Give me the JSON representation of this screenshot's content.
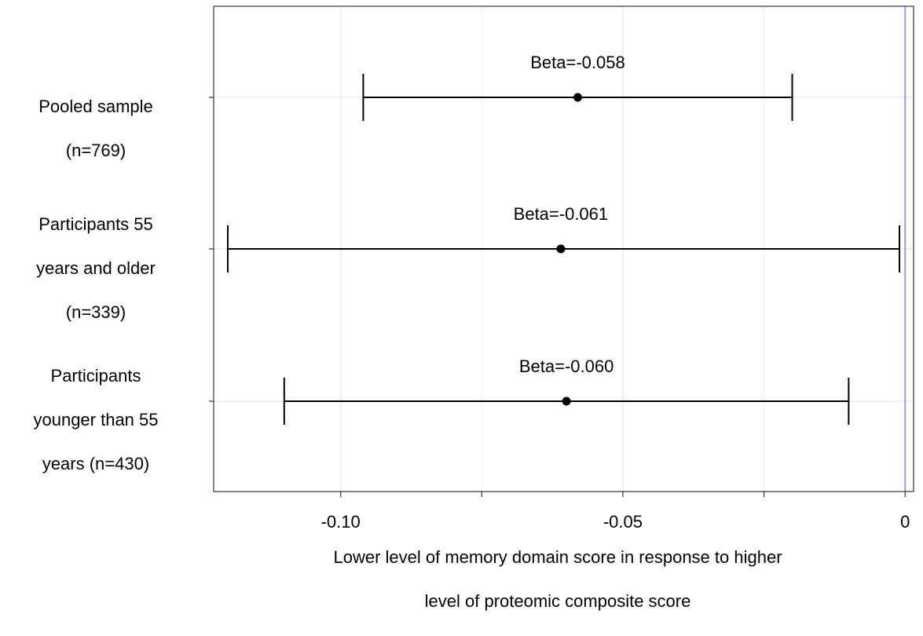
{
  "chart_data": {
    "type": "forest",
    "categories": [
      "Pooled sample (n=769)",
      "Participants 55 years and older (n=339)",
      "Participants younger than 55 years (n=430)"
    ],
    "category_lines": [
      [
        "Pooled sample",
        "(n=769)"
      ],
      [
        "Participants 55",
        "years and older",
        "(n=339)"
      ],
      [
        "Participants",
        "younger than 55",
        "years (n=430)"
      ]
    ],
    "estimates": [
      -0.058,
      -0.061,
      -0.06
    ],
    "ci_lower": [
      -0.096,
      -0.12,
      -0.11
    ],
    "ci_upper": [
      -0.02,
      -0.001,
      -0.01
    ],
    "annotations": [
      "Beta=-0.058",
      "Beta=-0.061",
      "Beta=-0.060"
    ],
    "xlabel_lines": [
      "Lower level of memory domain score in response to higher",
      "level of proteomic composite score"
    ],
    "xticks": [
      -0.1,
      -0.05,
      0
    ],
    "xtick_labels": [
      "-0.10",
      "-0.05",
      "0"
    ],
    "xlim": [
      -0.1225,
      0.0015
    ],
    "reference_line": 0,
    "grid": true,
    "colors": {
      "reference_line": "#9999ee",
      "grid": "#ebebeb",
      "panel_border": "#333333",
      "marks": "#000000"
    }
  }
}
